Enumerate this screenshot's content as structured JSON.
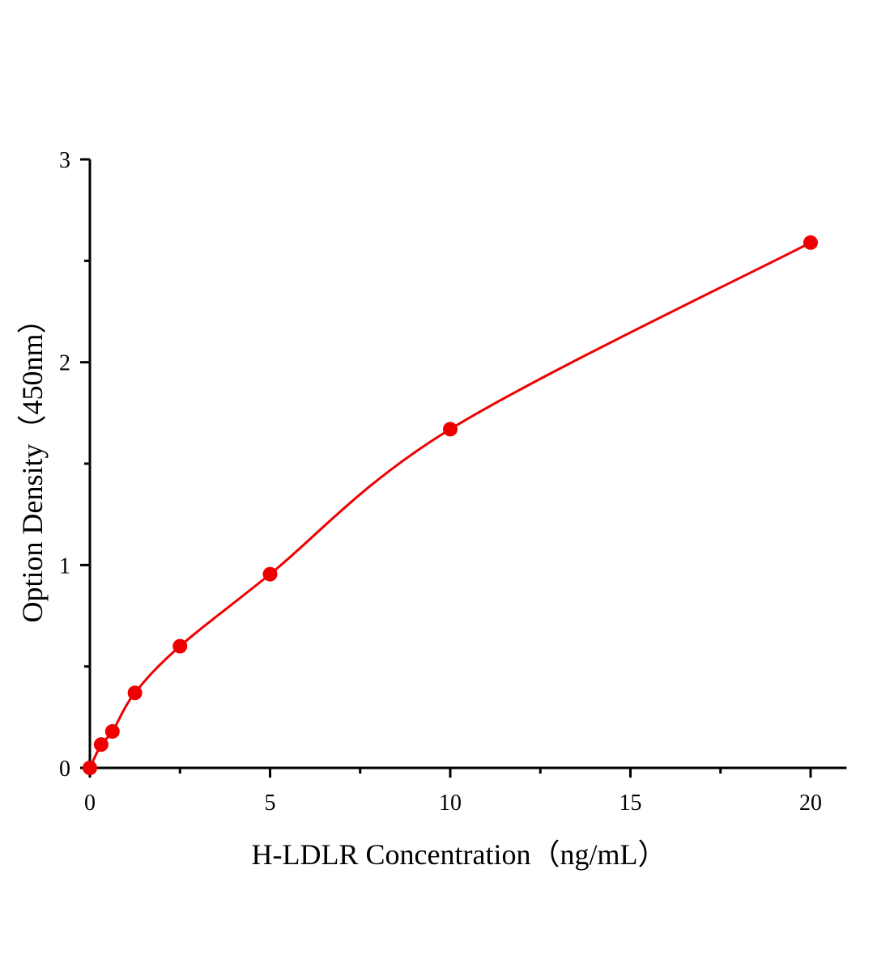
{
  "chart_data": {
    "type": "scatter",
    "title": "",
    "xlabel": "H-LDLR Concentration（ng/mL）",
    "ylabel": "Option Density（450nm）",
    "xlim": [
      0,
      21
    ],
    "ylim": [
      0,
      3
    ],
    "x_ticks": [
      0,
      5,
      10,
      15,
      20
    ],
    "x_tick_labels": [
      "0",
      "5",
      "10",
      "15",
      "20"
    ],
    "x_minor_ticks": [
      2.5,
      7.5,
      12.5,
      17.5
    ],
    "y_ticks": [
      0,
      1,
      2,
      3
    ],
    "y_tick_labels": [
      "0",
      "1",
      "2",
      "3"
    ],
    "y_minor_ticks": [
      0.5,
      1.5,
      2.5
    ],
    "grid": false,
    "series": [
      {
        "x": [
          0,
          0.3125,
          0.625,
          1.25,
          2.5,
          5,
          10,
          20
        ],
        "y": [
          0.0,
          0.115,
          0.18,
          0.37,
          0.6,
          0.955,
          1.67,
          2.59
        ],
        "marker": "circle",
        "color": "#ee0000",
        "fit_line": true
      }
    ]
  }
}
